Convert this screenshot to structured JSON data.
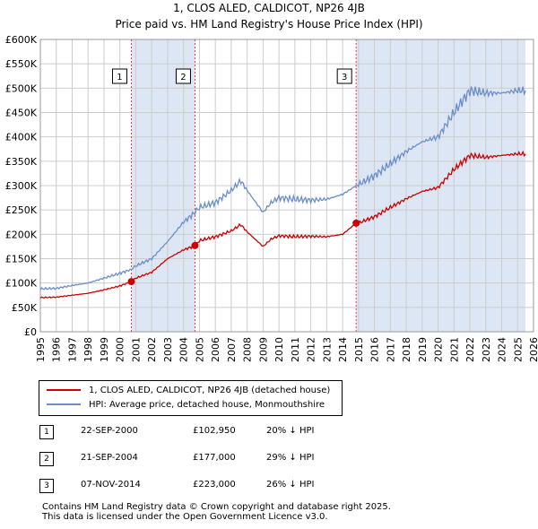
{
  "title_line1": "1, CLOS ALED, CALDICOT, NP26 4JB",
  "title_line2": "Price paid vs. HM Land Registry's House Price Index (HPI)",
  "colors": {
    "price_line": "#cc0000",
    "hpi_line": "#6a8fc8",
    "shade": "#dde6f4",
    "grid": "#cccccc",
    "vline": "#dd4444"
  },
  "legend": {
    "property": "1, CLOS ALED, CALDICOT, NP26 4JB (detached house)",
    "hpi": "HPI: Average price, detached house, Monmouthshire"
  },
  "sales": [
    {
      "num": "1",
      "date": "22-SEP-2000",
      "price": "£102,950",
      "hpi_diff": "20% ↓ HPI"
    },
    {
      "num": "2",
      "date": "21-SEP-2004",
      "price": "£177,000",
      "hpi_diff": "29% ↓ HPI"
    },
    {
      "num": "3",
      "date": "07-NOV-2014",
      "price": "£223,000",
      "hpi_diff": "26% ↓ HPI"
    }
  ],
  "footer_line1": "Contains HM Land Registry data © Crown copyright and database right 2025.",
  "footer_line2": "This data is licensed under the Open Government Licence v3.0.",
  "chart_data": {
    "type": "line",
    "x_range": [
      1995,
      2026
    ],
    "ylim": [
      0,
      600000
    ],
    "y_ticks": [
      0,
      50000,
      100000,
      150000,
      200000,
      250000,
      300000,
      350000,
      400000,
      450000,
      500000,
      550000,
      600000
    ],
    "y_tick_labels": [
      "£0",
      "£50K",
      "£100K",
      "£150K",
      "£200K",
      "£250K",
      "£300K",
      "£350K",
      "£400K",
      "£450K",
      "£500K",
      "£550K",
      "£600K"
    ],
    "x_ticks": [
      1995,
      1996,
      1997,
      1998,
      1999,
      2000,
      2001,
      2002,
      2003,
      2004,
      2005,
      2006,
      2007,
      2008,
      2009,
      2010,
      2011,
      2012,
      2013,
      2014,
      2015,
      2016,
      2017,
      2018,
      2019,
      2020,
      2021,
      2022,
      2023,
      2024,
      2025,
      2026
    ],
    "shaded_ranges": [
      [
        2000.72,
        2004.72
      ],
      [
        2014.85,
        2025.5
      ]
    ],
    "sale_markers": [
      {
        "label": "1",
        "x": 2000.72,
        "y": 102950
      },
      {
        "label": "2",
        "x": 2004.72,
        "y": 177000
      },
      {
        "label": "3",
        "x": 2014.85,
        "y": 223000
      }
    ],
    "series": [
      {
        "name": "HPI: Average price, detached house, Monmouthshire",
        "color": "#6a8fc8",
        "points": [
          [
            1995,
            88000
          ],
          [
            1996,
            89000
          ],
          [
            1997,
            95000
          ],
          [
            1998,
            100000
          ],
          [
            1999,
            110000
          ],
          [
            2000,
            120000
          ],
          [
            2000.72,
            128000
          ],
          [
            2001,
            135000
          ],
          [
            2002,
            150000
          ],
          [
            2003,
            185000
          ],
          [
            2004,
            225000
          ],
          [
            2004.72,
            245000
          ],
          [
            2005,
            255000
          ],
          [
            2006,
            265000
          ],
          [
            2007,
            290000
          ],
          [
            2007.6,
            310000
          ],
          [
            2008,
            290000
          ],
          [
            2009,
            245000
          ],
          [
            2009.5,
            265000
          ],
          [
            2010,
            275000
          ],
          [
            2011,
            272000
          ],
          [
            2012,
            270000
          ],
          [
            2013,
            272000
          ],
          [
            2014,
            282000
          ],
          [
            2014.85,
            300000
          ],
          [
            2015,
            302000
          ],
          [
            2016,
            320000
          ],
          [
            2017,
            345000
          ],
          [
            2018,
            370000
          ],
          [
            2019,
            390000
          ],
          [
            2020,
            400000
          ],
          [
            2021,
            450000
          ],
          [
            2022,
            495000
          ],
          [
            2023,
            490000
          ],
          [
            2024,
            490000
          ],
          [
            2025,
            495000
          ],
          [
            2025.5,
            495000
          ]
        ]
      },
      {
        "name": "1, CLOS ALED, CALDICOT, NP26 4JB (detached house)",
        "color": "#cc0000",
        "points": [
          [
            1995,
            70000
          ],
          [
            1996,
            71000
          ],
          [
            1997,
            75000
          ],
          [
            1998,
            79000
          ],
          [
            1999,
            86000
          ],
          [
            2000,
            94000
          ],
          [
            2000.72,
            102950
          ],
          [
            2001,
            110000
          ],
          [
            2002,
            122000
          ],
          [
            2003,
            150000
          ],
          [
            2004,
            168000
          ],
          [
            2004.72,
            177000
          ],
          [
            2005,
            187000
          ],
          [
            2006,
            195000
          ],
          [
            2007,
            207000
          ],
          [
            2007.6,
            220000
          ],
          [
            2008,
            205000
          ],
          [
            2009,
            175000
          ],
          [
            2009.5,
            190000
          ],
          [
            2010,
            197000
          ],
          [
            2011,
            195000
          ],
          [
            2012,
            196000
          ],
          [
            2013,
            195000
          ],
          [
            2014,
            200000
          ],
          [
            2014.85,
            223000
          ],
          [
            2015,
            223000
          ],
          [
            2016,
            236000
          ],
          [
            2017,
            255000
          ],
          [
            2018,
            273000
          ],
          [
            2019,
            288000
          ],
          [
            2020,
            296000
          ],
          [
            2021,
            333000
          ],
          [
            2022,
            362000
          ],
          [
            2023,
            358000
          ],
          [
            2024,
            362000
          ],
          [
            2025,
            365000
          ],
          [
            2025.5,
            365000
          ]
        ]
      }
    ]
  }
}
